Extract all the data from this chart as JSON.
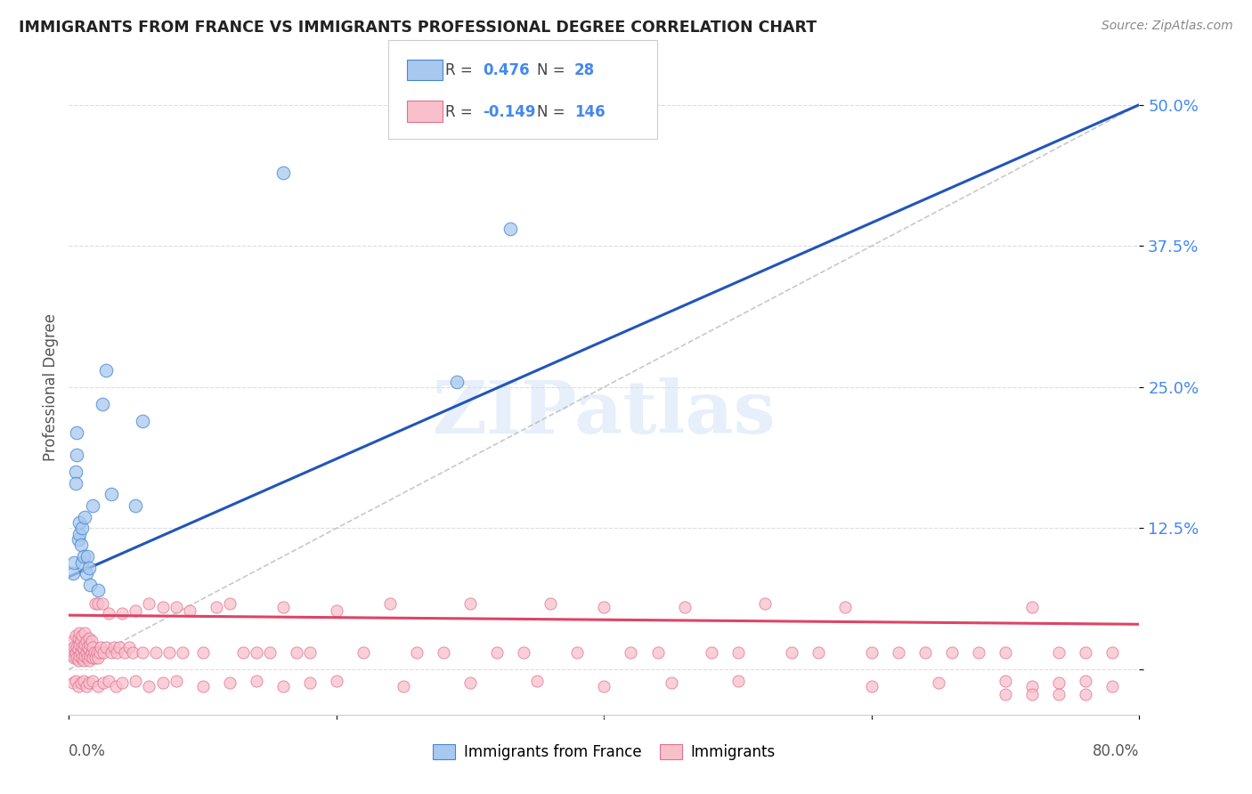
{
  "title": "IMMIGRANTS FROM FRANCE VS IMMIGRANTS PROFESSIONAL DEGREE CORRELATION CHART",
  "source": "Source: ZipAtlas.com",
  "ylabel": "Professional Degree",
  "ytick_vals": [
    0.0,
    0.125,
    0.25,
    0.375,
    0.5
  ],
  "ytick_labels": [
    "",
    "12.5%",
    "25.0%",
    "37.5%",
    "50.0%"
  ],
  "xlim": [
    0.0,
    0.8
  ],
  "ylim": [
    -0.04,
    0.54
  ],
  "blue_scatter_x": [
    0.003,
    0.004,
    0.005,
    0.005,
    0.006,
    0.006,
    0.007,
    0.008,
    0.008,
    0.009,
    0.01,
    0.01,
    0.011,
    0.012,
    0.013,
    0.014,
    0.015,
    0.016,
    0.018,
    0.022,
    0.025,
    0.028,
    0.032,
    0.05,
    0.055,
    0.16,
    0.29,
    0.33
  ],
  "blue_scatter_y": [
    0.085,
    0.095,
    0.175,
    0.165,
    0.19,
    0.21,
    0.115,
    0.12,
    0.13,
    0.11,
    0.095,
    0.125,
    0.1,
    0.135,
    0.085,
    0.1,
    0.09,
    0.075,
    0.145,
    0.07,
    0.235,
    0.265,
    0.155,
    0.145,
    0.22,
    0.44,
    0.255,
    0.39
  ],
  "pink_scatter_x": [
    0.002,
    0.003,
    0.003,
    0.004,
    0.004,
    0.005,
    0.005,
    0.006,
    0.006,
    0.007,
    0.007,
    0.007,
    0.008,
    0.008,
    0.008,
    0.009,
    0.009,
    0.01,
    0.01,
    0.01,
    0.011,
    0.011,
    0.012,
    0.012,
    0.012,
    0.013,
    0.013,
    0.014,
    0.014,
    0.015,
    0.015,
    0.015,
    0.016,
    0.016,
    0.017,
    0.017,
    0.018,
    0.018,
    0.019,
    0.02,
    0.02,
    0.021,
    0.022,
    0.022,
    0.023,
    0.024,
    0.025,
    0.026,
    0.028,
    0.03,
    0.032,
    0.034,
    0.036,
    0.038,
    0.04,
    0.042,
    0.045,
    0.048,
    0.05,
    0.055,
    0.06,
    0.065,
    0.07,
    0.075,
    0.08,
    0.085,
    0.09,
    0.1,
    0.11,
    0.12,
    0.13,
    0.14,
    0.15,
    0.16,
    0.17,
    0.18,
    0.2,
    0.22,
    0.24,
    0.26,
    0.28,
    0.3,
    0.32,
    0.34,
    0.36,
    0.38,
    0.4,
    0.42,
    0.44,
    0.46,
    0.48,
    0.5,
    0.52,
    0.54,
    0.56,
    0.58,
    0.6,
    0.62,
    0.64,
    0.66,
    0.68,
    0.7,
    0.72,
    0.74,
    0.76,
    0.78,
    0.003,
    0.005,
    0.007,
    0.009,
    0.011,
    0.013,
    0.015,
    0.018,
    0.022,
    0.026,
    0.03,
    0.035,
    0.04,
    0.05,
    0.06,
    0.07,
    0.08,
    0.1,
    0.12,
    0.14,
    0.16,
    0.18,
    0.2,
    0.25,
    0.3,
    0.35,
    0.4,
    0.45,
    0.5,
    0.6,
    0.65,
    0.7,
    0.72,
    0.74,
    0.76,
    0.78,
    0.76,
    0.74,
    0.72,
    0.7
  ],
  "pink_scatter_y": [
    0.015,
    0.012,
    0.025,
    0.01,
    0.02,
    0.015,
    0.03,
    0.01,
    0.02,
    0.008,
    0.018,
    0.028,
    0.012,
    0.022,
    0.032,
    0.015,
    0.025,
    0.01,
    0.02,
    0.03,
    0.008,
    0.018,
    0.012,
    0.022,
    0.032,
    0.015,
    0.025,
    0.01,
    0.02,
    0.008,
    0.018,
    0.028,
    0.012,
    0.022,
    0.015,
    0.025,
    0.01,
    0.02,
    0.015,
    0.058,
    0.01,
    0.015,
    0.01,
    0.058,
    0.015,
    0.02,
    0.058,
    0.015,
    0.02,
    0.05,
    0.015,
    0.02,
    0.015,
    0.02,
    0.05,
    0.015,
    0.02,
    0.015,
    0.052,
    0.015,
    0.058,
    0.015,
    0.055,
    0.015,
    0.055,
    0.015,
    0.052,
    0.015,
    0.055,
    0.058,
    0.015,
    0.015,
    0.015,
    0.055,
    0.015,
    0.015,
    0.052,
    0.015,
    0.058,
    0.015,
    0.015,
    0.058,
    0.015,
    0.015,
    0.058,
    0.015,
    0.055,
    0.015,
    0.015,
    0.055,
    0.015,
    0.015,
    0.058,
    0.015,
    0.015,
    0.055,
    0.015,
    0.015,
    0.015,
    0.015,
    0.015,
    0.015,
    0.055,
    0.015,
    0.015,
    0.015,
    -0.012,
    -0.01,
    -0.015,
    -0.012,
    -0.01,
    -0.015,
    -0.012,
    -0.01,
    -0.015,
    -0.012,
    -0.01,
    -0.015,
    -0.012,
    -0.01,
    -0.015,
    -0.012,
    -0.01,
    -0.015,
    -0.012,
    -0.01,
    -0.015,
    -0.012,
    -0.01,
    -0.015,
    -0.012,
    -0.01,
    -0.015,
    -0.012,
    -0.01,
    -0.015,
    -0.012,
    -0.01,
    -0.015,
    -0.012,
    -0.01,
    -0.015,
    -0.022,
    -0.022,
    -0.022,
    -0.022
  ],
  "blue_line_x0": 0.0,
  "blue_line_y0": 0.082,
  "blue_line_x1": 0.8,
  "blue_line_y1": 0.5,
  "pink_line_x0": 0.0,
  "pink_line_y0": 0.048,
  "pink_line_x1": 0.8,
  "pink_line_y1": 0.04,
  "diag_line_x0": 0.0,
  "diag_line_y0": 0.0,
  "diag_line_x1": 0.8,
  "diag_line_y1": 0.5,
  "watermark_text": "ZIPatlas",
  "background_color": "#ffffff",
  "blue_dot_color": "#a8c8f0",
  "blue_edge_color": "#4488cc",
  "pink_dot_color": "#f8c0cc",
  "pink_edge_color": "#e07090",
  "blue_line_color": "#2255bb",
  "pink_line_color": "#dd4466",
  "diag_color": "#bbbbbb",
  "right_tick_color": "#4488ee",
  "grid_color": "#dddddd",
  "title_color": "#222222",
  "source_color": "#888888",
  "legend_R_N_color": "#4488ee",
  "legend_box_edge": "#cccccc"
}
